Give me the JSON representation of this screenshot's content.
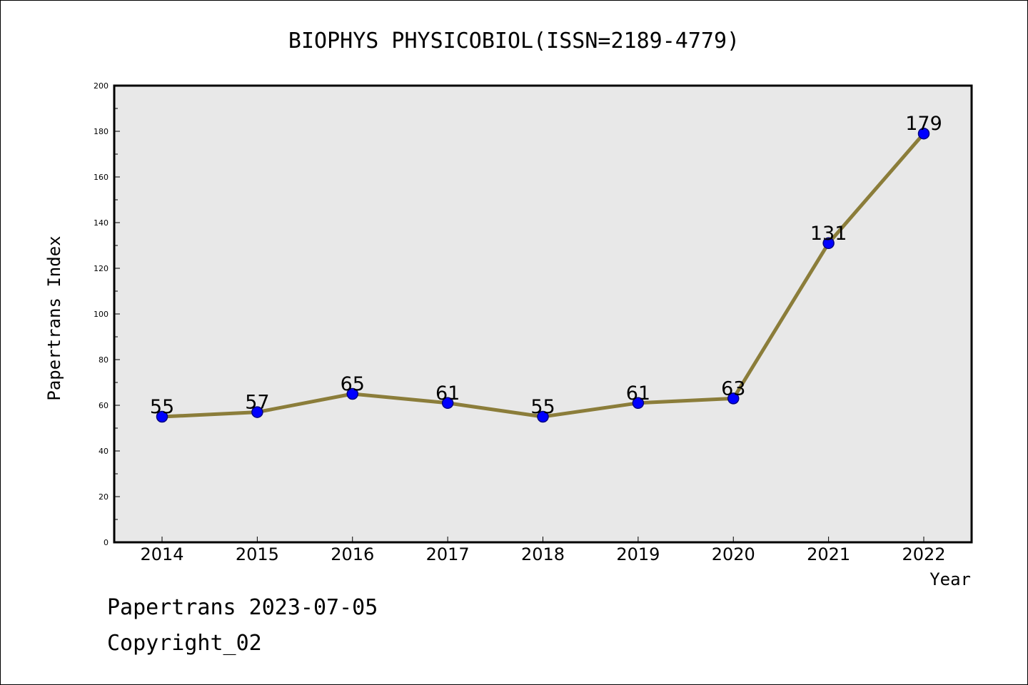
{
  "chart_data": {
    "type": "line",
    "title": "BIOPHYS PHYSICOBIOL(ISSN=2189-4779)",
    "xlabel": "Year",
    "ylabel": "Papertrans Index",
    "categories": [
      "2014",
      "2015",
      "2016",
      "2017",
      "2018",
      "2019",
      "2020",
      "2021",
      "2022"
    ],
    "values": [
      55,
      57,
      65,
      61,
      55,
      61,
      63,
      131,
      179
    ],
    "data_labels": [
      "55",
      "57",
      "65",
      "61",
      "55",
      "61",
      "63",
      "131",
      "179"
    ],
    "yticks": [
      0,
      20,
      40,
      60,
      80,
      100,
      120,
      140,
      160,
      180,
      200
    ],
    "ylim": [
      0,
      200
    ],
    "grid": false,
    "colors": {
      "line": "#8b7d3a",
      "marker_fill": "#0000ff",
      "marker_edge": "#000080",
      "plot_background": "#e8e8e8"
    }
  },
  "footer": {
    "date_text": "Papertrans 2023-07-05",
    "copyright_text": "Copyright_02"
  }
}
